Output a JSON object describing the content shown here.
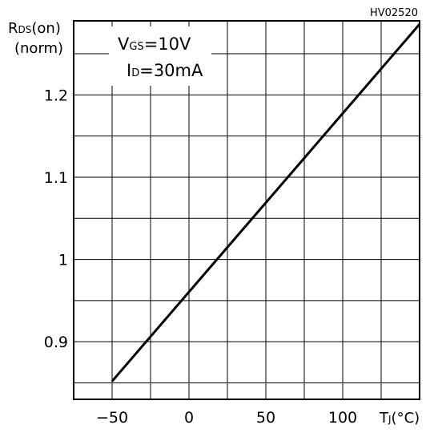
{
  "chart_data": {
    "type": "line",
    "code": "HV02520",
    "ylabel_main": "R",
    "ylabel_sub": "DS",
    "ylabel_tail": "(on)",
    "ylabel_unit": "(norm)",
    "xlabel_main": "T",
    "xlabel_sub": "J",
    "xlabel_tail": "(°C)",
    "annotations": [
      {
        "main": "V",
        "sub": "GS",
        "tail": "=10V"
      },
      {
        "main": "I",
        "sub": "D",
        "tail": "=30mA"
      }
    ],
    "xlim": [
      -75,
      150
    ],
    "ylim": [
      0.83,
      1.29
    ],
    "x_ticks": [
      -50,
      0,
      50,
      100
    ],
    "x_tick_labels": [
      "−50",
      "0",
      "50",
      "100"
    ],
    "y_ticks": [
      0.9,
      1.0,
      1.1,
      1.2
    ],
    "y_tick_labels": [
      "0.9",
      "1",
      "1.1",
      "1.2"
    ],
    "x_grid_step": 25,
    "y_grid_step": 0.05,
    "grid": true,
    "series": [
      {
        "x": [
          -50,
          150
        ],
        "y": [
          0.852,
          1.286
        ]
      }
    ]
  }
}
